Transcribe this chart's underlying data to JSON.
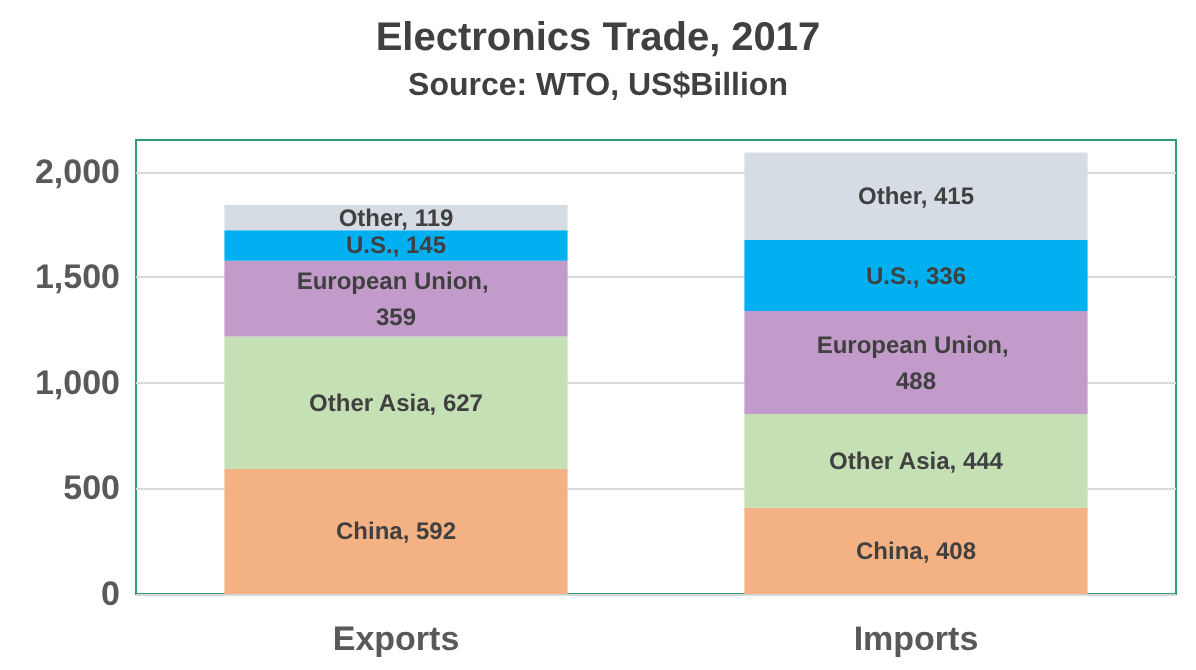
{
  "chart_data": {
    "type": "bar",
    "title": "Electronics Trade, 2017",
    "subtitle": "Source: WTO, US$Billion",
    "categories": [
      "Exports",
      "Imports"
    ],
    "stacked": true,
    "grid": "y",
    "ylim": [
      0,
      2150
    ],
    "yticks": [
      {
        "value": 0,
        "label": "0"
      },
      {
        "value": 500,
        "label": "500"
      },
      {
        "value": 1000,
        "label": "1,000"
      },
      {
        "value": 1500,
        "label": "1,500"
      },
      {
        "value": 2000,
        "label": "2,000"
      }
    ],
    "series": [
      {
        "color": "#f4b183",
        "values": [
          592,
          408
        ],
        "value_labels": [
          "China, 592",
          "China, 408"
        ]
      },
      {
        "color": "#c5e0b4",
        "values": [
          627,
          444
        ],
        "value_labels": [
          "Other Asia, 627",
          "Other Asia, 444"
        ]
      },
      {
        "color": "#c39bcb",
        "values": [
          359,
          488
        ],
        "value_labels": [
          "European Union, 359",
          "European Union, 488"
        ]
      },
      {
        "color": "#00b0f0",
        "values": [
          145,
          336
        ],
        "value_labels": [
          "U.S., 145",
          "U.S., 336"
        ]
      },
      {
        "color": "#d6dce4",
        "values": [
          119,
          415
        ],
        "value_labels": [
          "Other, 119",
          "Other, 415"
        ]
      }
    ]
  }
}
